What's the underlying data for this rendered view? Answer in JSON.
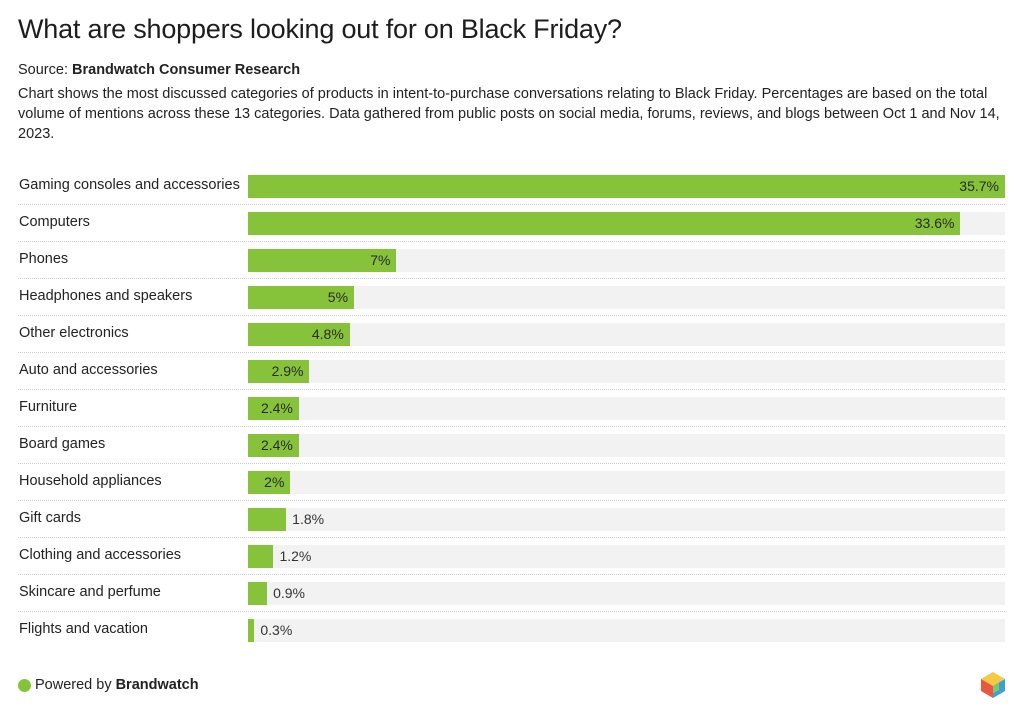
{
  "header": {
    "title": "What are shoppers looking out for on Black Friday?",
    "source_prefix": "Source:",
    "source_name": "Brandwatch Consumer Research",
    "description": "Chart shows the most discussed categories of products in intent-to-purchase conversations relating to Black Friday. Percentages are based on the total volume of mentions across these 13 categories. Data gathered from public posts on social media, forums, reviews, and blogs between Oct 1 and Nov 14, 2023."
  },
  "footer": {
    "powered_prefix": "Powered by",
    "powered_name": "Brandwatch",
    "logo_icon": "brandwatch-hexagon-logo"
  },
  "colors": {
    "bar": "#86c33b",
    "track": "#f2f2f2"
  },
  "chart_data": {
    "type": "bar",
    "orientation": "horizontal",
    "categories": [
      "Gaming consoles and accessories",
      "Computers",
      "Phones",
      "Headphones and speakers",
      "Other electronics",
      "Auto and accessories",
      "Furniture",
      "Board games",
      "Household appliances",
      "Gift cards",
      "Clothing and accessories",
      "Skincare and perfume",
      "Flights and vacation"
    ],
    "values": [
      35.7,
      33.6,
      7,
      5,
      4.8,
      2.9,
      2.4,
      2.4,
      2,
      1.8,
      1.2,
      0.9,
      0.3
    ],
    "value_labels": [
      "35.7%",
      "33.6%",
      "7%",
      "5%",
      "4.8%",
      "2.9%",
      "2.4%",
      "2.4%",
      "2%",
      "1.8%",
      "1.2%",
      "0.9%",
      "0.3%"
    ],
    "xlim": [
      0,
      35.7
    ],
    "grid": false,
    "legend": "none"
  }
}
